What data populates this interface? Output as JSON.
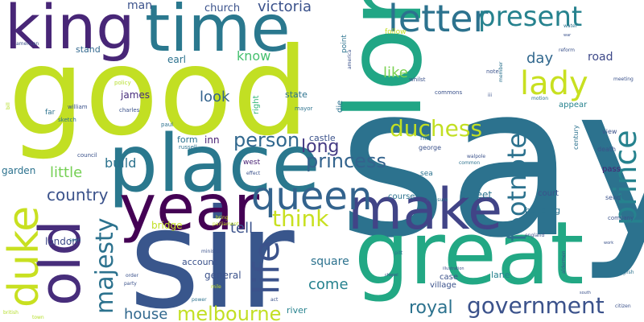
{
  "colors": {
    "background": "#ffffff",
    "palette": [
      "#440154",
      "#482878",
      "#3e4989",
      "#31688e",
      "#26828e",
      "#1f9e89",
      "#35b779",
      "#6ece58",
      "#b5de2b",
      "#fde725"
    ]
  },
  "words": [
    {
      "text": "good",
      "color": "#c2df23"
    },
    {
      "text": "say",
      "color": "#2c728e"
    },
    {
      "text": "lord",
      "color": "#21a685"
    },
    {
      "text": "sir",
      "color": "#39568c"
    },
    {
      "text": "great",
      "color": "#22a884"
    },
    {
      "text": "time",
      "color": "#2a788e"
    },
    {
      "text": "king",
      "color": "#482677"
    },
    {
      "text": "place",
      "color": "#2a788e"
    },
    {
      "text": "make",
      "color": "#414487"
    },
    {
      "text": "year",
      "color": "#440154"
    },
    {
      "text": "old",
      "color": "#472d7b"
    },
    {
      "text": "queen",
      "color": "#33638d"
    },
    {
      "text": "duke",
      "color": "#c8e020"
    },
    {
      "text": "letter",
      "color": "#2c728e"
    },
    {
      "text": "present",
      "color": "#26828e"
    },
    {
      "text": "lady",
      "color": "#c8e020"
    },
    {
      "text": "prince",
      "color": "#26828e"
    },
    {
      "text": "footnote",
      "color": "#2c728e"
    },
    {
      "text": "majesty",
      "color": "#2c728e"
    },
    {
      "text": "life",
      "color": "#3b528b"
    },
    {
      "text": "government",
      "color": "#3b528b"
    },
    {
      "text": "melbourne",
      "color": "#c2df23"
    },
    {
      "text": "duchess",
      "color": "#c2df23"
    },
    {
      "text": "think",
      "color": "#c8e020"
    },
    {
      "text": "princess",
      "color": "#33638d"
    },
    {
      "text": "person",
      "color": "#31688e"
    },
    {
      "text": "royal",
      "color": "#2c728e"
    },
    {
      "text": "long",
      "color": "#443a83"
    },
    {
      "text": "country",
      "color": "#3b528b"
    },
    {
      "text": "little",
      "color": "#75d054"
    },
    {
      "text": "build",
      "color": "#2c728e"
    },
    {
      "text": "house",
      "color": "#31688e"
    },
    {
      "text": "come",
      "color": "#26828e"
    },
    {
      "text": "tell",
      "color": "#3b528b"
    },
    {
      "text": "victoria",
      "color": "#3b528b"
    },
    {
      "text": "look",
      "color": "#33638d"
    },
    {
      "text": "know",
      "color": "#46c06f"
    },
    {
      "text": "like",
      "color": "#7ad151"
    },
    {
      "text": "day",
      "color": "#31688e"
    },
    {
      "text": "road",
      "color": "#3e4989"
    },
    {
      "text": "man",
      "color": "#3b528b"
    },
    {
      "text": "church",
      "color": "#3b528b"
    },
    {
      "text": "earl",
      "color": "#2c728e"
    },
    {
      "text": "james",
      "color": "#472d7b"
    },
    {
      "text": "inn",
      "color": "#482173"
    },
    {
      "text": "garden",
      "color": "#2c728e"
    },
    {
      "text": "london",
      "color": "#3e4989"
    },
    {
      "text": "square",
      "color": "#2c728e"
    },
    {
      "text": "general",
      "color": "#3b528b"
    },
    {
      "text": "account",
      "color": "#3b528b"
    },
    {
      "text": "bridge",
      "color": "#c2df23"
    },
    {
      "text": "state",
      "color": "#2c728e"
    },
    {
      "text": "form",
      "color": "#2c728e"
    },
    {
      "text": "castle",
      "color": "#3b528b"
    },
    {
      "text": "street",
      "color": "#2c728e"
    },
    {
      "text": "stand",
      "color": "#31688e"
    },
    {
      "text": "river",
      "color": "#26828e"
    },
    {
      "text": "lane",
      "color": "#26828e"
    },
    {
      "text": "case",
      "color": "#3b528b"
    },
    {
      "text": "village",
      "color": "#3b528b"
    },
    {
      "text": "building",
      "color": "#2c728e"
    },
    {
      "text": "course",
      "color": "#2c728e"
    },
    {
      "text": "pass",
      "color": "#482173"
    },
    {
      "text": "court",
      "color": "#3b528b"
    },
    {
      "text": "appear",
      "color": "#26828e"
    },
    {
      "text": "follow",
      "color": "#c2df23"
    },
    {
      "text": "point",
      "color": "#2c728e"
    },
    {
      "text": "right",
      "color": "#35b779"
    },
    {
      "text": "die",
      "color": "#2c728e"
    },
    {
      "text": "west",
      "color": "#482173"
    },
    {
      "text": "sea",
      "color": "#2c728e"
    },
    {
      "text": "hill",
      "color": "#2c728e"
    },
    {
      "text": "george",
      "color": "#3b528b"
    },
    {
      "text": "century",
      "color": "#2c728e"
    },
    {
      "text": "view",
      "color": "#3b528b"
    },
    {
      "text": "death",
      "color": "#3b528b"
    },
    {
      "text": "send",
      "color": "#3b528b"
    },
    {
      "text": "company",
      "color": "#3b528b"
    },
    {
      "text": "far",
      "color": "#2c728e"
    },
    {
      "text": "sketch",
      "color": "#2c728e"
    },
    {
      "text": "council",
      "color": "#3b528b"
    },
    {
      "text": "charles",
      "color": "#3b528b"
    },
    {
      "text": "paul",
      "color": "#2c728e"
    },
    {
      "text": "russell",
      "color": "#2c728e"
    },
    {
      "text": "william",
      "color": "#3b528b"
    },
    {
      "text": "mayor",
      "color": "#2c728e"
    },
    {
      "text": "policy",
      "color": "#b5de2b"
    },
    {
      "text": "commons",
      "color": "#3b528b"
    },
    {
      "text": "whilst",
      "color": "#3b528b"
    },
    {
      "text": "note",
      "color": "#3b528b"
    },
    {
      "text": "iii",
      "color": "#3b528b"
    },
    {
      "text": "reform",
      "color": "#3b528b"
    },
    {
      "text": "water",
      "color": "#2c728e"
    },
    {
      "text": "meeting",
      "color": "#3b528b"
    },
    {
      "text": "member",
      "color": "#2c728e"
    },
    {
      "text": "effect",
      "color": "#3b528b"
    },
    {
      "text": "minister",
      "color": "#3b528b"
    },
    {
      "text": "parliament",
      "color": "#c2df23"
    },
    {
      "text": "bring",
      "color": "#c2df23"
    },
    {
      "text": "order",
      "color": "#3b528b"
    },
    {
      "text": "party",
      "color": "#3b528b"
    },
    {
      "text": "mile",
      "color": "#c2df23"
    },
    {
      "text": "power",
      "color": "#2c728e"
    },
    {
      "text": "act",
      "color": "#3b528b"
    },
    {
      "text": "measure",
      "color": "#2c728e"
    },
    {
      "text": "pitt",
      "color": "#2c728e"
    },
    {
      "text": "common",
      "color": "#2c728e"
    },
    {
      "text": "england",
      "color": "#3b528b"
    },
    {
      "text": "english",
      "color": "#2c728e"
    },
    {
      "text": "aldermen",
      "color": "#3b528b"
    },
    {
      "text": "citizen",
      "color": "#3b528b"
    },
    {
      "text": "british",
      "color": "#b5de2b"
    },
    {
      "text": "town",
      "color": "#b5de2b"
    },
    {
      "text": "american",
      "color": "#3b528b"
    },
    {
      "text": "america",
      "color": "#3b528b"
    },
    {
      "text": "walpole",
      "color": "#3b528b"
    },
    {
      "text": "motion",
      "color": "#2c728e"
    },
    {
      "text": "bill",
      "color": "#b5de2b"
    },
    {
      "text": "soon",
      "color": "#2c728e"
    },
    {
      "text": "war",
      "color": "#3b528b"
    },
    {
      "text": "chapel",
      "color": "#3b528b"
    },
    {
      "text": "illustration",
      "color": "#3b528b"
    },
    {
      "text": "south",
      "color": "#3b528b"
    },
    {
      "text": "work",
      "color": "#3b528b"
    },
    {
      "text": "tower",
      "color": "#3b528b"
    }
  ]
}
